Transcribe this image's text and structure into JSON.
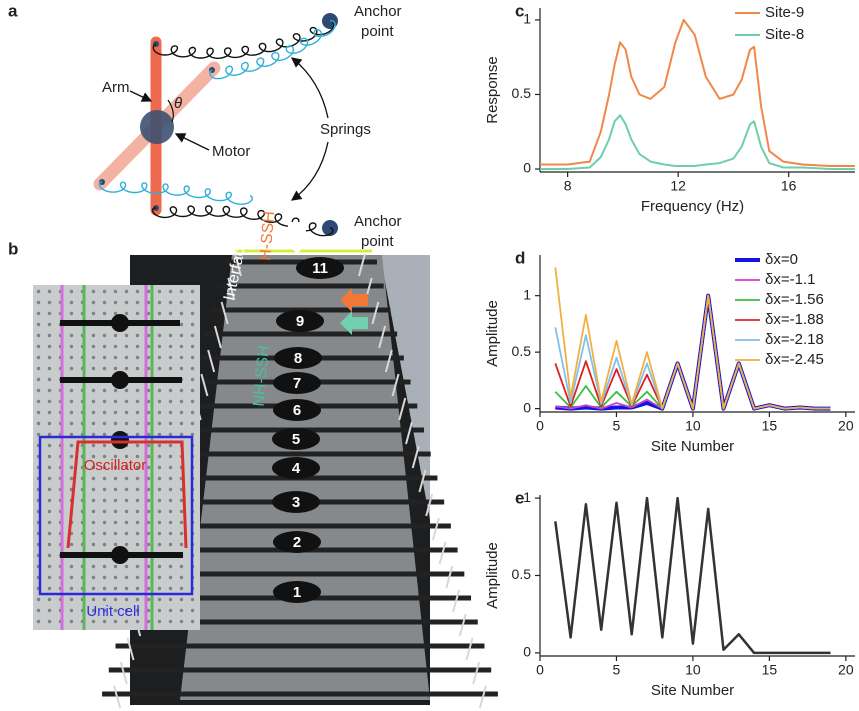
{
  "panel_a": {
    "label": "a",
    "arm": "Arm",
    "angle": "θ",
    "motor": "Motor",
    "springs": "Springs",
    "anchor_top": [
      "Anchor",
      "point"
    ],
    "anchor_bottom": [
      "Anchor",
      "point"
    ]
  },
  "panel_b": {
    "label": "b",
    "oscillator": "Oscillator",
    "unit_cell": "Unit cell",
    "interface": "Interface",
    "h_ssh": "H-SSH",
    "nh_ssh": "NH-SSH",
    "sites": [
      11,
      9,
      8,
      7,
      6,
      5,
      4,
      3,
      2,
      1
    ]
  },
  "chart_data": [
    {
      "type": "line",
      "panel_label": "c",
      "xlabel": "Frequency (Hz)",
      "ylabel": "Response",
      "x": [
        7,
        8,
        8.8,
        9.2,
        9.5,
        9.7,
        9.9,
        10.1,
        10.3,
        10.6,
        11,
        11.5,
        11.9,
        12.2,
        12.6,
        13,
        13.5,
        14,
        14.3,
        14.6,
        14.75,
        15,
        15.3,
        15.8,
        16.5,
        17.5,
        18.4
      ],
      "series": [
        {
          "name": "Site-9",
          "color": "#f0884a",
          "width": 2,
          "values": [
            0.03,
            0.03,
            0.05,
            0.25,
            0.5,
            0.7,
            0.85,
            0.8,
            0.62,
            0.5,
            0.47,
            0.55,
            0.85,
            1.0,
            0.9,
            0.62,
            0.47,
            0.5,
            0.6,
            0.8,
            0.82,
            0.42,
            0.12,
            0.05,
            0.03,
            0.02,
            0.02
          ]
        },
        {
          "name": "Site-8",
          "color": "#6fceac",
          "width": 2,
          "values": [
            0,
            0,
            0.01,
            0.08,
            0.2,
            0.32,
            0.36,
            0.3,
            0.2,
            0.1,
            0.05,
            0.03,
            0.02,
            0.02,
            0.02,
            0.03,
            0.04,
            0.07,
            0.15,
            0.3,
            0.32,
            0.15,
            0.04,
            0.01,
            0.01,
            0,
            0
          ]
        }
      ],
      "xlim": [
        7,
        18.4
      ],
      "xticks": [
        8,
        12,
        16
      ],
      "ylim": [
        -0.02,
        1.08
      ],
      "yticks": [
        0,
        0.5,
        1
      ],
      "legend": "upper right"
    },
    {
      "type": "line",
      "panel_label": "d",
      "xlabel": "Site Number",
      "ylabel": "Amplitude",
      "x": [
        1,
        2,
        3,
        4,
        5,
        6,
        7,
        8,
        9,
        10,
        11,
        12,
        13,
        14,
        15,
        16,
        17,
        18,
        19
      ],
      "series": [
        {
          "name": "δx=0",
          "color": "#1414e0",
          "width": 4,
          "values": [
            0.01,
            0,
            0.01,
            0,
            0.01,
            0.01,
            0.05,
            0,
            0.4,
            0,
            1.0,
            0,
            0.4,
            0,
            0.03,
            0,
            0.01,
            0,
            0
          ]
        },
        {
          "name": "δx=-1.1",
          "color": "#d040d0",
          "width": 1.8,
          "values": [
            0.02,
            0,
            0.03,
            0,
            0.05,
            0.01,
            0.08,
            0,
            0.4,
            0,
            1.0,
            0,
            0.4,
            0,
            0.03,
            0,
            0.01,
            0,
            0
          ]
        },
        {
          "name": "δx=-1.56",
          "color": "#3cbf3c",
          "width": 1.8,
          "values": [
            0.15,
            0.01,
            0.2,
            0.01,
            0.15,
            0.02,
            0.15,
            0,
            0.4,
            0,
            1.0,
            0,
            0.4,
            0,
            0.03,
            0,
            0.01,
            0,
            0
          ]
        },
        {
          "name": "δx=-1.88",
          "color": "#e02020",
          "width": 1.8,
          "values": [
            0.4,
            0.02,
            0.42,
            0.02,
            0.35,
            0.02,
            0.3,
            0,
            0.4,
            0,
            1.0,
            0,
            0.4,
            0,
            0.03,
            0,
            0.01,
            0,
            0
          ]
        },
        {
          "name": "δx=-2.18",
          "color": "#80c0f0",
          "width": 1.8,
          "values": [
            0.72,
            0.05,
            0.65,
            0.04,
            0.45,
            0.03,
            0.4,
            0,
            0.4,
            0,
            1.0,
            0,
            0.4,
            0,
            0.03,
            0,
            0.01,
            0,
            0
          ]
        },
        {
          "name": "δx=-2.45",
          "color": "#f0b040",
          "width": 1.8,
          "values": [
            1.25,
            0.1,
            0.83,
            0.06,
            0.6,
            0.04,
            0.5,
            0,
            0.4,
            0,
            1.0,
            0,
            0.4,
            0,
            0.03,
            0,
            0.01,
            0,
            0
          ]
        }
      ],
      "xlim": [
        0,
        20.6
      ],
      "xticks": [
        0,
        5,
        10,
        15,
        20
      ],
      "ylim": [
        -0.03,
        1.36
      ],
      "yticks": [
        0,
        0.5,
        1
      ],
      "legend": "upper right"
    },
    {
      "type": "line",
      "panel_label": "e",
      "xlabel": "Site Number",
      "ylabel": "Amplitude",
      "x": [
        1,
        2,
        3,
        4,
        5,
        6,
        7,
        8,
        9,
        10,
        11,
        12,
        13,
        14,
        15,
        16,
        17,
        18,
        19
      ],
      "series": [
        {
          "color": "#333333",
          "width": 2.5,
          "values": [
            0.85,
            0.1,
            0.96,
            0.15,
            0.97,
            0.12,
            1.0,
            0.1,
            1.0,
            0.06,
            0.93,
            0.02,
            0.12,
            0,
            0,
            0,
            0,
            0,
            0
          ]
        }
      ],
      "xlim": [
        0,
        20.6
      ],
      "xticks": [
        0,
        5,
        10,
        15,
        20
      ],
      "ylim": [
        -0.02,
        1.02
      ],
      "yticks": [
        0,
        0.5,
        1
      ]
    }
  ]
}
